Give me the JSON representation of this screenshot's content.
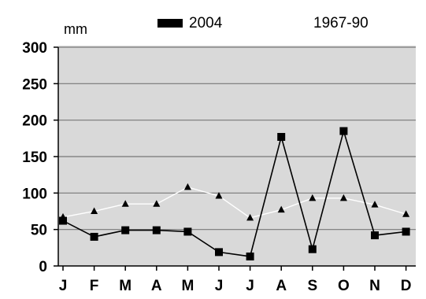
{
  "chart_data": {
    "type": "line",
    "ylabel": "mm",
    "categories": [
      "J",
      "F",
      "M",
      "A",
      "M",
      "J",
      "J",
      "A",
      "S",
      "O",
      "N",
      "D"
    ],
    "ylim": [
      0,
      300
    ],
    "yticks": [
      0,
      50,
      100,
      150,
      200,
      250,
      300
    ],
    "grid": "horizontal",
    "legend_position": "top",
    "colors": {
      "plot_background": "#d9d9d9",
      "gridline": "#777777",
      "series_2004": "#000000",
      "series_1967_90": "#ffffff"
    },
    "series": [
      {
        "name": "2004",
        "marker": "square",
        "values": [
          62,
          40,
          49,
          49,
          47,
          19,
          13,
          177,
          23,
          185,
          42,
          47
        ]
      },
      {
        "name": "1967-90",
        "marker": "triangle",
        "values": [
          67,
          75,
          85,
          85,
          108,
          96,
          66,
          77,
          93,
          93,
          84,
          71
        ]
      }
    ]
  }
}
